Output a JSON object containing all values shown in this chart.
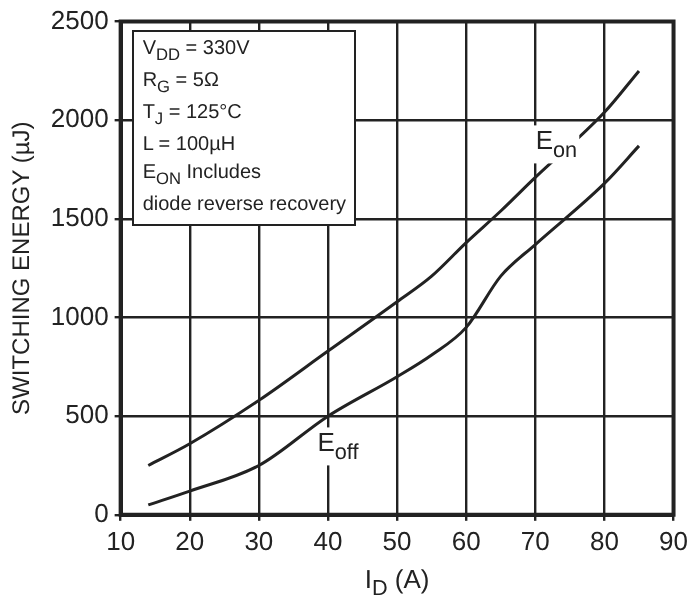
{
  "chart_data": {
    "type": "line",
    "xlabel": "I$_{D}$ (A)",
    "ylabel": "SWITCHING ENERGY (µJ)",
    "x": [
      14,
      20,
      30,
      40,
      50,
      55,
      60,
      65,
      70,
      80,
      85
    ],
    "series": [
      {
        "name": "E$_{on}$",
        "color": "#222222",
        "values": [
          250,
          360,
          580,
          830,
          1080,
          1210,
          1380,
          1540,
          1710,
          2040,
          2250
        ]
      },
      {
        "name": "E$_{off}$",
        "color": "#222222",
        "values": [
          50,
          120,
          250,
          500,
          700,
          810,
          950,
          1210,
          1370,
          1680,
          1870
        ]
      }
    ],
    "xlim": [
      10,
      90
    ],
    "xticks": [
      10,
      20,
      30,
      40,
      50,
      60,
      70,
      80,
      90
    ],
    "ylim": [
      0,
      2500
    ],
    "yticks": [
      0,
      500,
      1000,
      1500,
      2000,
      2500
    ],
    "grid": true,
    "legend": false,
    "marker": "none",
    "line_style": "solid",
    "annotations": [
      "V$_{DD}$ = 330V",
      "R$_{G}$ = 5Ω",
      "T$_{J}$ = 125°C",
      "L = 100µH",
      "E$_{ON}$ Includes",
      "diode reverse recovery"
    ]
  }
}
